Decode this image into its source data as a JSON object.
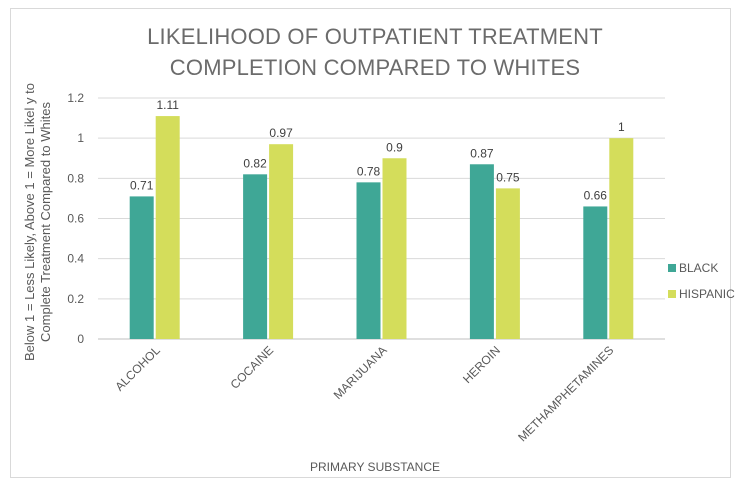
{
  "chart_data": {
    "type": "bar",
    "title_lines": [
      "LIKELIHOOD OF OUTPATIENT TREATMENT",
      "COMPLETION COMPARED TO WHITES"
    ],
    "ylabel_lines": [
      "Below 1 = Less Likely, Above 1 = More Likel y to",
      "Complete Treatment Compared to Whites"
    ],
    "xlabel": "PRIMARY SUBSTANCE",
    "categories": [
      "ALCOHOL",
      "COCAINE",
      "MARIJUANA",
      "HEROIN",
      "METHAMPHETAMINES"
    ],
    "series": [
      {
        "name": "BLACK",
        "values": [
          0.71,
          0.82,
          0.78,
          0.87,
          0.66
        ],
        "value_labels": [
          "0.71",
          "0.82",
          "0.78",
          "0.87",
          "0.66"
        ],
        "color": "#3fa796"
      },
      {
        "name": "HISPANIC",
        "values": [
          1.11,
          0.97,
          0.9,
          0.75,
          1.0
        ],
        "value_labels": [
          "1.11",
          "0.97",
          "0.9",
          "0.75",
          "1"
        ],
        "color": "#d4dd5b"
      }
    ],
    "yticks": [
      "0",
      "0.2",
      "0.4",
      "0.6",
      "0.8",
      "1",
      "1.2"
    ],
    "ylim": [
      0,
      1.2
    ],
    "grid": true,
    "legend_position": "right"
  }
}
